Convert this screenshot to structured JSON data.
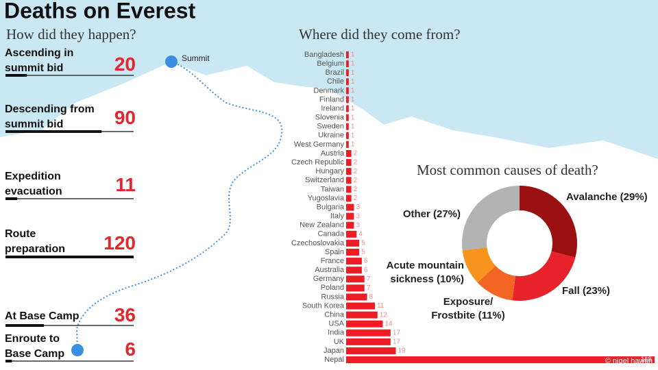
{
  "title": "Deaths on Everest",
  "credit": "© nigel hawtin",
  "chart_data": [
    {
      "type": "bar",
      "subtitle": "How did they happen?",
      "annotation": "Summit",
      "categories": [
        "Ascending in summit bid",
        "Descending from summit bid",
        "Expedition evacuation",
        "Route preparation",
        "At Base Camp",
        "Enroute to Base Camp"
      ],
      "values": [
        20,
        90,
        11,
        120,
        36,
        6
      ],
      "color": "#e3262d",
      "xlim": [
        0,
        120
      ]
    },
    {
      "type": "bar",
      "subtitle": "Where did they come from?",
      "categories": [
        "Bangladesh",
        "Belgium",
        "Brazil",
        "Chile",
        "Denmark",
        "Finland",
        "Ireland",
        "Slovenia",
        "Sweden",
        "Ukraine",
        "West Germany",
        "Austria",
        "Czech Republic",
        "Hungary",
        "Switzerland",
        "Taiwan",
        "Yugoslavia",
        "Bulgaria",
        "Italy",
        "New Zealand",
        "Canada",
        "Czechoslovakia",
        "Spain",
        "France",
        "Australia",
        "Germany",
        "Poland",
        "Russia",
        "South Korea",
        "China",
        "USA",
        "India",
        "UK",
        "Japan",
        "Nepal"
      ],
      "values": [
        1,
        1,
        1,
        1,
        1,
        1,
        1,
        1,
        1,
        1,
        1,
        2,
        2,
        2,
        2,
        2,
        2,
        3,
        3,
        3,
        4,
        5,
        5,
        6,
        6,
        7,
        7,
        8,
        11,
        12,
        14,
        17,
        17,
        19,
        118
      ],
      "color": "#ee1c25",
      "xlim": [
        0,
        118
      ]
    },
    {
      "type": "pie",
      "subtitle": "Most common causes of death?",
      "values": [
        29,
        23,
        11,
        10,
        27
      ],
      "value_labels": [
        "Avalanche (29%)",
        "Fall (23%)",
        "Exposure/ Frostbite (11%)",
        "Acute mountain sickness (10%)",
        "Other (27%)"
      ],
      "colors": [
        "#9b1111",
        "#e8222a",
        "#f26522",
        "#f7941d",
        "#b3b3b3"
      ]
    }
  ]
}
